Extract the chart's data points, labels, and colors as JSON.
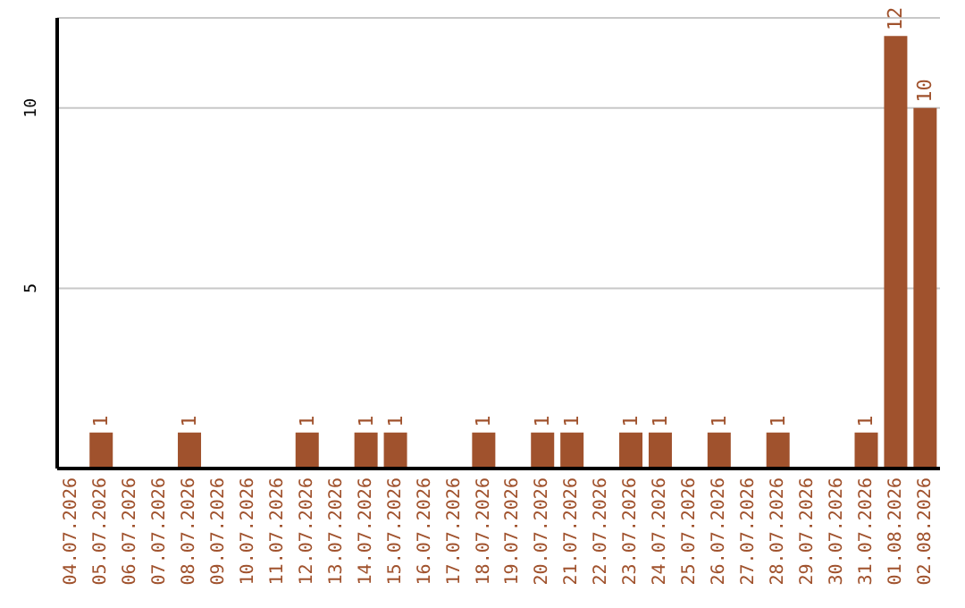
{
  "chart_data": {
    "type": "bar",
    "categories": [
      "04.07.2026",
      "05.07.2026",
      "06.07.2026",
      "07.07.2026",
      "08.07.2026",
      "09.07.2026",
      "10.07.2026",
      "11.07.2026",
      "12.07.2026",
      "13.07.2026",
      "14.07.2026",
      "15.07.2026",
      "16.07.2026",
      "17.07.2026",
      "18.07.2026",
      "19.07.2026",
      "20.07.2026",
      "21.07.2026",
      "22.07.2026",
      "23.07.2026",
      "24.07.2026",
      "25.07.2026",
      "26.07.2026",
      "27.07.2026",
      "28.07.2026",
      "29.07.2026",
      "30.07.2026",
      "31.07.2026",
      "01.08.2026",
      "02.08.2026"
    ],
    "values": [
      0,
      1,
      0,
      0,
      1,
      0,
      0,
      0,
      1,
      0,
      1,
      1,
      0,
      0,
      1,
      0,
      1,
      1,
      0,
      1,
      1,
      0,
      1,
      0,
      1,
      0,
      0,
      1,
      12,
      10
    ],
    "value_labels": [
      null,
      "1",
      null,
      null,
      "1",
      null,
      null,
      null,
      "1",
      null,
      "1",
      "1",
      null,
      null,
      "1",
      null,
      "1",
      "1",
      null,
      "1",
      "1",
      null,
      "1",
      null,
      "1",
      null,
      null,
      "1",
      "12",
      "10"
    ],
    "color": "#a0522d",
    "ylim": [
      0,
      12.5
    ],
    "yticks": [
      5,
      10
    ],
    "grid": "y"
  }
}
